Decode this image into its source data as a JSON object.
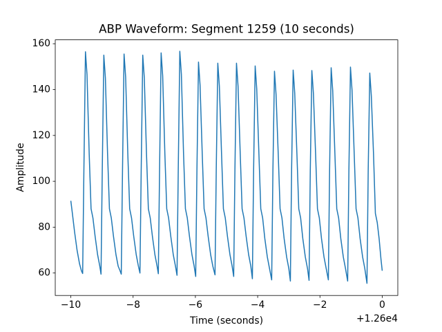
{
  "chart_data": {
    "type": "line",
    "title": "ABP Waveform: Segment 1259 (10 seconds)",
    "x_label": "Time (seconds)",
    "y_label": "Amplitude",
    "x_offset_label": "+1.26e4",
    "xlim": [
      -10.5,
      0.5
    ],
    "ylim": [
      50.2,
      161.7
    ],
    "xticks": [
      {
        "value": -10,
        "label": "−10"
      },
      {
        "value": -8,
        "label": "−8"
      },
      {
        "value": -6,
        "label": "−6"
      },
      {
        "value": -4,
        "label": "−4"
      },
      {
        "value": -2,
        "label": "−2"
      },
      0
    ],
    "yticks": [
      60,
      80,
      100,
      120,
      140,
      160
    ],
    "grid": false,
    "series": [
      {
        "color": "#1f77b4",
        "x": [
          -10.0,
          -9.95,
          -9.88,
          -9.8,
          -9.72,
          -9.66,
          -9.62,
          -9.58,
          -9.53,
          -9.48,
          -9.41,
          -9.35,
          -9.29,
          -9.22,
          -9.14,
          -9.07,
          -9.03,
          -8.99,
          -8.94,
          -8.89,
          -8.82,
          -8.76,
          -8.7,
          -8.63,
          -8.55,
          -8.48,
          -8.42,
          -8.38,
          -8.34,
          -8.29,
          -8.24,
          -8.17,
          -8.11,
          -8.05,
          -7.98,
          -7.9,
          -7.83,
          -7.78,
          -7.74,
          -7.69,
          -7.64,
          -7.57,
          -7.51,
          -7.45,
          -7.38,
          -7.3,
          -7.23,
          -7.19,
          -7.15,
          -7.1,
          -7.05,
          -6.98,
          -6.92,
          -6.86,
          -6.79,
          -6.71,
          -6.64,
          -6.59,
          -6.55,
          -6.5,
          -6.45,
          -6.38,
          -6.32,
          -6.26,
          -6.19,
          -6.11,
          -6.04,
          -5.99,
          -5.95,
          -5.9,
          -5.85,
          -5.78,
          -5.72,
          -5.66,
          -5.59,
          -5.51,
          -5.44,
          -5.37,
          -5.33,
          -5.28,
          -5.23,
          -5.16,
          -5.1,
          -5.04,
          -4.97,
          -4.89,
          -4.82,
          -4.77,
          -4.73,
          -4.68,
          -4.63,
          -4.56,
          -4.5,
          -4.44,
          -4.37,
          -4.29,
          -4.22,
          -4.17,
          -4.13,
          -4.08,
          -4.03,
          -3.96,
          -3.9,
          -3.84,
          -3.77,
          -3.69,
          -3.62,
          -3.55,
          -3.51,
          -3.46,
          -3.41,
          -3.34,
          -3.28,
          -3.22,
          -3.15,
          -3.07,
          -3.0,
          -2.95,
          -2.91,
          -2.86,
          -2.81,
          -2.74,
          -2.68,
          -2.62,
          -2.55,
          -2.47,
          -2.4,
          -2.35,
          -2.31,
          -2.26,
          -2.21,
          -2.14,
          -2.08,
          -2.02,
          -1.95,
          -1.87,
          -1.8,
          -1.73,
          -1.69,
          -1.64,
          -1.59,
          -1.52,
          -1.46,
          -1.4,
          -1.33,
          -1.25,
          -1.18,
          -1.11,
          -1.07,
          -1.02,
          -0.97,
          -0.9,
          -0.84,
          -0.78,
          -0.71,
          -0.63,
          -0.56,
          -0.49,
          -0.45,
          -0.4,
          -0.35,
          -0.28,
          -0.22,
          -0.16,
          -0.1,
          -0.04,
          0.0
        ],
        "values": [
          91.5,
          86,
          78,
          70,
          64,
          61,
          59.8,
          105,
          156.5,
          146.5,
          112,
          88,
          84,
          76,
          68,
          63,
          59.5,
          105,
          155,
          145,
          112,
          88,
          84,
          76,
          68,
          63,
          61,
          59.5,
          105,
          155.5,
          145.5,
          112,
          88,
          84,
          76,
          68,
          63,
          60,
          105,
          155,
          145,
          112,
          88,
          84,
          76,
          68,
          63,
          59.7,
          105,
          156,
          146,
          112,
          88,
          84,
          76,
          68,
          63,
          59,
          105,
          156.7,
          146.7,
          112,
          88,
          84,
          76,
          68,
          63,
          58.5,
          105,
          152,
          142,
          112,
          88,
          84,
          76,
          68,
          63,
          59.2,
          105,
          151.5,
          141.5,
          112,
          88,
          84,
          76,
          68,
          63,
          58.5,
          105,
          151.5,
          141.5,
          112,
          88,
          84,
          76,
          68,
          63,
          57.5,
          105,
          150.3,
          140.3,
          112,
          88,
          84,
          75,
          67,
          62,
          57,
          105,
          148,
          138,
          112,
          88,
          84,
          75,
          67,
          62,
          56.5,
          105,
          148.5,
          138.5,
          112,
          88,
          84,
          75,
          67,
          62,
          56.8,
          105,
          148.3,
          138.3,
          112,
          88,
          84,
          75,
          67,
          62,
          57,
          105,
          149.5,
          139.5,
          112,
          88,
          84,
          75,
          67,
          62,
          56.5,
          105,
          149.8,
          139.8,
          112,
          88,
          84,
          75,
          67,
          62,
          55.5,
          105,
          147.2,
          137.2,
          112,
          86,
          82,
          75,
          66,
          61
        ]
      }
    ]
  }
}
